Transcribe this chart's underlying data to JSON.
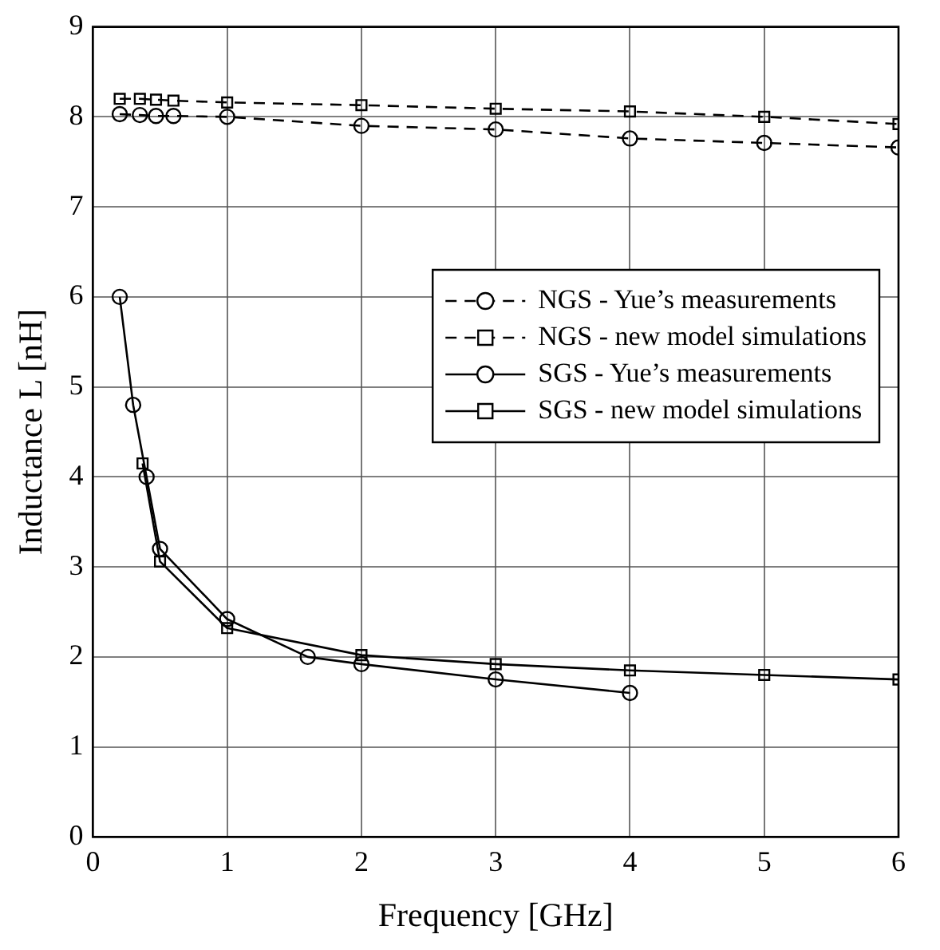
{
  "chart_data": {
    "type": "line",
    "xlabel": "Frequency [GHz]",
    "ylabel": "Inductance L [nH]",
    "xlim": [
      0,
      6
    ],
    "xticks": [
      0,
      1,
      2,
      3,
      4,
      5,
      6
    ],
    "ylim": [
      0,
      9
    ],
    "yticks": [
      0,
      1,
      2,
      3,
      4,
      5,
      6,
      7,
      8,
      9
    ],
    "grid": true,
    "legend": "right",
    "series": [
      {
        "name": "NGS - Yue’s measurements",
        "color": "#000000",
        "marker": "circle",
        "line_style": "dashed",
        "x": [
          0.2,
          0.35,
          0.47,
          0.6,
          1,
          2,
          3,
          4,
          5,
          6
        ],
        "values": [
          8.03,
          8.02,
          8.01,
          8.01,
          8.0,
          7.9,
          7.86,
          7.76,
          7.71,
          7.66
        ]
      },
      {
        "name": "NGS - new model simulations",
        "color": "#000000",
        "marker": "square",
        "line_style": "dashed",
        "x": [
          0.2,
          0.35,
          0.47,
          0.6,
          1,
          2,
          3,
          4,
          5,
          6
        ],
        "values": [
          8.2,
          8.2,
          8.19,
          8.18,
          8.16,
          8.13,
          8.09,
          8.06,
          8.0,
          7.92
        ]
      },
      {
        "name": "SGS - Yue’s measurements",
        "color": "#000000",
        "marker": "circle",
        "line_style": "solid",
        "x": [
          0.2,
          0.3,
          0.4,
          0.5,
          1,
          1.6,
          2,
          3,
          4
        ],
        "values": [
          6.0,
          4.8,
          4.0,
          3.2,
          2.42,
          2.0,
          1.92,
          1.75,
          1.6
        ]
      },
      {
        "name": "SGS - new model simulations",
        "color": "#000000",
        "marker": "square",
        "line_style": "solid",
        "x": [
          0.37,
          0.5,
          1,
          2,
          3,
          4,
          5,
          6
        ],
        "values": [
          4.15,
          3.06,
          2.32,
          2.02,
          1.92,
          1.85,
          1.8,
          1.75
        ]
      }
    ]
  }
}
